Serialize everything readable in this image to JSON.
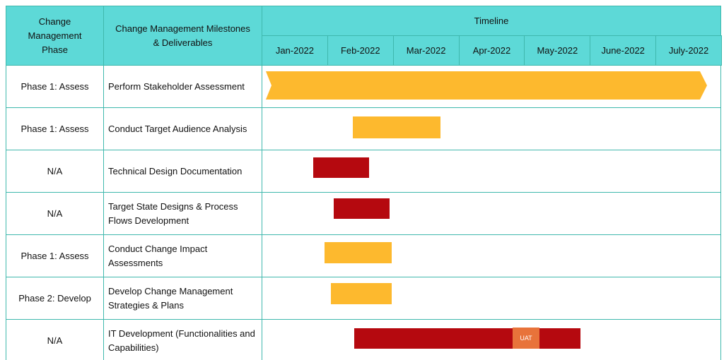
{
  "header": {
    "phase": "Change Management Phase",
    "milestones": "Change Management Milestones & Deliverables",
    "timeline": "Timeline",
    "months": [
      "Jan-2022",
      "Feb-2022",
      "Mar-2022",
      "Apr-2022",
      "May-2022",
      "June-2022",
      "July-2022"
    ]
  },
  "rows": [
    {
      "phase": "Phase 1: Assess",
      "milestone": "Perform Stakeholder Assessment"
    },
    {
      "phase": "Phase 1: Assess",
      "milestone": "Conduct Target Audience Analysis"
    },
    {
      "phase": "N/A",
      "milestone": "Technical Design Documentation"
    },
    {
      "phase": "N/A",
      "milestone": "Target State Designs & Process Flows Development"
    },
    {
      "phase": "Phase 1: Assess",
      "milestone": "Conduct Change Impact Assessments"
    },
    {
      "phase": "Phase 2: Develop",
      "milestone": "Develop Change Management Strategies & Plans"
    },
    {
      "phase": "N/A",
      "milestone": "IT Development (Functionalities and Capabilities)",
      "marker": "UAT"
    }
  ]
}
